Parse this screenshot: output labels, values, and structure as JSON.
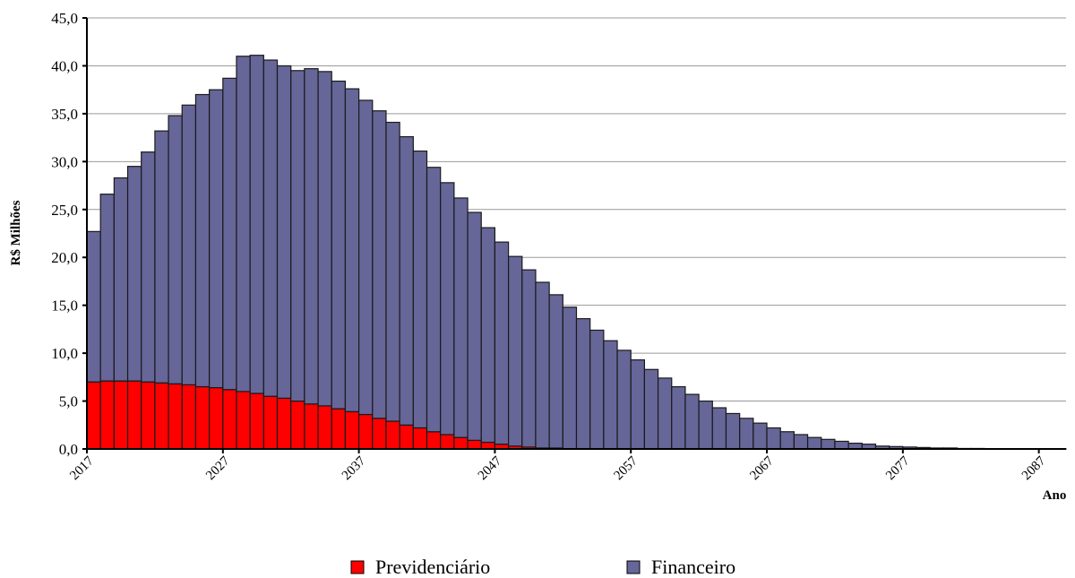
{
  "chart_data": {
    "type": "stacked_bar",
    "y_label": "R$ Milhões",
    "x_label": "Ano",
    "categories": [
      "2017",
      null,
      null,
      null,
      null,
      null,
      null,
      null,
      null,
      null,
      "2027",
      null,
      null,
      null,
      null,
      null,
      null,
      null,
      null,
      null,
      "2037",
      null,
      null,
      null,
      null,
      null,
      null,
      null,
      null,
      null,
      "2047",
      null,
      null,
      null,
      null,
      null,
      null,
      null,
      null,
      null,
      "2057",
      null,
      null,
      null,
      null,
      null,
      null,
      null,
      null,
      null,
      "2067",
      null,
      null,
      null,
      null,
      null,
      null,
      null,
      null,
      null,
      "2077",
      null,
      null,
      null,
      null,
      null,
      null,
      null,
      null,
      null,
      "2087",
      null
    ],
    "series": [
      {
        "name": "Previdenciário",
        "color": "#ff0000",
        "values": [
          7.0,
          7.1,
          7.1,
          7.1,
          7.0,
          6.9,
          6.8,
          6.7,
          6.5,
          6.4,
          6.2,
          6.0,
          5.8,
          5.5,
          5.3,
          5.0,
          4.7,
          4.5,
          4.2,
          3.9,
          3.6,
          3.2,
          2.9,
          2.5,
          2.2,
          1.8,
          1.5,
          1.2,
          0.9,
          0.7,
          0.5,
          0.3,
          0.2,
          0.1,
          0.1,
          0,
          0,
          0,
          0,
          0,
          0,
          0,
          0,
          0,
          0,
          0,
          0,
          0,
          0,
          0,
          0,
          0,
          0,
          0,
          0,
          0,
          0,
          0,
          0,
          0,
          0,
          0,
          0,
          0,
          0,
          0,
          0,
          0,
          0,
          0,
          0,
          0
        ]
      },
      {
        "name": "Financeiro",
        "color": "#666699",
        "values": [
          15.7,
          19.5,
          21.2,
          22.4,
          24.0,
          26.3,
          28.0,
          29.2,
          30.5,
          31.1,
          32.5,
          35.0,
          35.3,
          35.1,
          34.7,
          34.5,
          35.0,
          34.9,
          34.2,
          33.7,
          32.8,
          32.1,
          31.2,
          30.1,
          28.9,
          27.6,
          26.3,
          25.0,
          23.8,
          22.4,
          21.1,
          19.8,
          18.5,
          17.3,
          16.0,
          14.8,
          13.6,
          12.4,
          11.3,
          10.3,
          9.3,
          8.3,
          7.4,
          6.5,
          5.7,
          5.0,
          4.3,
          3.7,
          3.2,
          2.7,
          2.2,
          1.8,
          1.5,
          1.2,
          1.0,
          0.8,
          0.6,
          0.5,
          0.3,
          0.25,
          0.2,
          0.15,
          0.1,
          0.1,
          0.05,
          0.05,
          0.03,
          0.02,
          0.02,
          0.01,
          0.01,
          0.01
        ]
      }
    ],
    "ylim": [
      0,
      45
    ],
    "yticks": [
      {
        "value": 0,
        "label": "0,0"
      },
      {
        "value": 5,
        "label": "5,0"
      },
      {
        "value": 10,
        "label": "10,0"
      },
      {
        "value": 15,
        "label": "15,0"
      },
      {
        "value": 20,
        "label": "20,0"
      },
      {
        "value": 25,
        "label": "25,0"
      },
      {
        "value": 30,
        "label": "30,0"
      },
      {
        "value": 35,
        "label": "35,0"
      },
      {
        "value": 40,
        "label": "40,0"
      },
      {
        "value": 45,
        "label": "45,0"
      }
    ],
    "grid": true,
    "legend": "bottom"
  }
}
